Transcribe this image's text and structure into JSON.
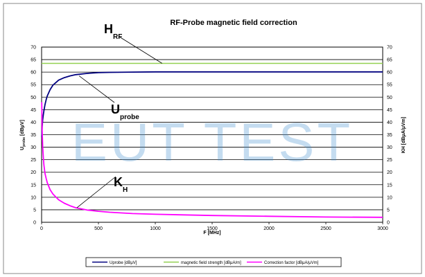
{
  "chart_data": {
    "type": "line",
    "title": "RF-Probe magnetic field correction",
    "xlabel": "F [MHz]",
    "ylabel_left": {
      "main": "U",
      "sub": "probe",
      "rest": " [dBμV]"
    },
    "ylabel_right": "KH [dBμA/μVm]",
    "xlim": [
      0,
      3000
    ],
    "ylim": [
      0,
      70
    ],
    "x_ticks": [
      0,
      500,
      1000,
      1500,
      2000,
      2500,
      3000
    ],
    "y_ticks": [
      0,
      5,
      10,
      15,
      20,
      25,
      30,
      35,
      40,
      45,
      50,
      55,
      60,
      65,
      70
    ],
    "grid": true,
    "legend_position": "bottom",
    "series": [
      {
        "name": "Uprobe [dBμV]",
        "color": "#00007f",
        "x": [
          1,
          5,
          10,
          15,
          20,
          30,
          40,
          50,
          75,
          100,
          150,
          200,
          250,
          300,
          400,
          500,
          600,
          800,
          1000,
          1500,
          2000,
          2500,
          3000
        ],
        "values": [
          34,
          38,
          41,
          43,
          44.5,
          47,
          49,
          50.5,
          53,
          54.8,
          56.8,
          57.8,
          58.5,
          59,
          59.5,
          59.8,
          59.9,
          60,
          60.1,
          60.1,
          60.1,
          60.1,
          60.1
        ]
      },
      {
        "name": "magnetic field strength [dBμA/m]",
        "color": "#92d050",
        "x": [
          0,
          3000
        ],
        "values": [
          63.5,
          63.5
        ]
      },
      {
        "name": "Correction factor [dBμA/μVm]",
        "color": "#ff00ff",
        "x": [
          1,
          5,
          10,
          15,
          20,
          30,
          40,
          50,
          75,
          100,
          150,
          200,
          250,
          300,
          400,
          500,
          600,
          800,
          1000,
          1500,
          2000,
          2500,
          3000
        ],
        "values": [
          48,
          37,
          30,
          26,
          23,
          19.5,
          17.5,
          15.8,
          13,
          11.3,
          9,
          7.6,
          6.6,
          5.8,
          4.9,
          4.4,
          4,
          3.5,
          3.2,
          2.7,
          2.4,
          2.1,
          2
        ]
      }
    ],
    "annotations": [
      {
        "label": "H",
        "sub": "RF",
        "target": [
          1060,
          63.5
        ]
      },
      {
        "label": "U",
        "sub": "probe",
        "target": [
          330,
          58.5
        ]
      },
      {
        "label": "K",
        "sub": "H",
        "target": [
          310,
          5.8
        ]
      }
    ],
    "watermark": "EUT TEST"
  }
}
